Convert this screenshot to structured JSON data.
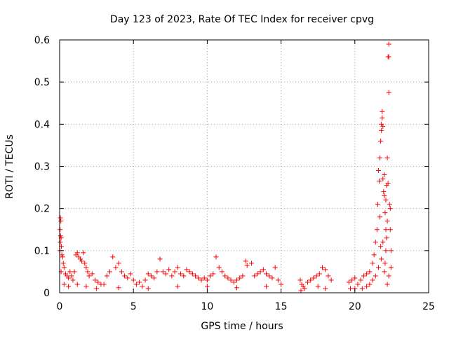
{
  "chart_data": {
    "type": "scatter",
    "title": "Day 123 of 2023, Rate Of TEC Index for receiver cpvg",
    "xlabel": "GPS time / hours",
    "ylabel": "ROTI / TECUs",
    "xlim": [
      0,
      25
    ],
    "ylim": [
      0,
      0.6
    ],
    "x_ticks": [
      0,
      5,
      10,
      15,
      20,
      25
    ],
    "y_ticks": [
      0,
      0.1,
      0.2,
      0.3,
      0.4,
      0.5,
      0.6
    ],
    "x_tick_labels": [
      "0",
      "5",
      "10",
      "15",
      "20",
      "25"
    ],
    "y_tick_labels": [
      "0",
      "0.1",
      "0.2",
      "0.3",
      "0.4",
      "0.5",
      "0.6"
    ],
    "grid": true,
    "legend": "none",
    "marker": "+",
    "marker_color": "#ff0000",
    "series": [
      {
        "values": [
          [
            0.05,
            0.178
          ],
          [
            0.08,
            0.17
          ],
          [
            0.03,
            0.15
          ],
          [
            0.06,
            0.135
          ],
          [
            0.1,
            0.13
          ],
          [
            0.04,
            0.12
          ],
          [
            0.12,
            0.11
          ],
          [
            0.02,
            0.1
          ],
          [
            0.15,
            0.09
          ],
          [
            0.2,
            0.085
          ],
          [
            0.25,
            0.07
          ],
          [
            0.3,
            0.06
          ],
          [
            0.1,
            0.05
          ],
          [
            0.4,
            0.045
          ],
          [
            0.5,
            0.04
          ],
          [
            0.6,
            0.035
          ],
          [
            0.7,
            0.05
          ],
          [
            0.8,
            0.04
          ],
          [
            0.9,
            0.03
          ],
          [
            1.0,
            0.05
          ],
          [
            1.1,
            0.09
          ],
          [
            1.2,
            0.095
          ],
          [
            1.3,
            0.085
          ],
          [
            1.4,
            0.08
          ],
          [
            1.5,
            0.075
          ],
          [
            1.6,
            0.095
          ],
          [
            1.7,
            0.07
          ],
          [
            1.8,
            0.06
          ],
          [
            1.9,
            0.05
          ],
          [
            2.0,
            0.04
          ],
          [
            2.2,
            0.045
          ],
          [
            2.4,
            0.03
          ],
          [
            2.6,
            0.025
          ],
          [
            2.8,
            0.02
          ],
          [
            3.0,
            0.02
          ],
          [
            0.3,
            0.02
          ],
          [
            0.6,
            0.015
          ],
          [
            1.2,
            0.02
          ],
          [
            1.8,
            0.015
          ],
          [
            2.5,
            0.01
          ],
          [
            3.2,
            0.04
          ],
          [
            3.4,
            0.05
          ],
          [
            3.6,
            0.085
          ],
          [
            3.8,
            0.06
          ],
          [
            4.0,
            0.07
          ],
          [
            4.2,
            0.05
          ],
          [
            4.4,
            0.04
          ],
          [
            4.6,
            0.035
          ],
          [
            4.8,
            0.045
          ],
          [
            5.0,
            0.03
          ],
          [
            5.2,
            0.02
          ],
          [
            5.4,
            0.025
          ],
          [
            5.6,
            0.015
          ],
          [
            5.8,
            0.03
          ],
          [
            6.0,
            0.045
          ],
          [
            6.2,
            0.04
          ],
          [
            6.4,
            0.035
          ],
          [
            6.6,
            0.05
          ],
          [
            6.8,
            0.08
          ],
          [
            7.0,
            0.05
          ],
          [
            7.2,
            0.045
          ],
          [
            7.4,
            0.055
          ],
          [
            7.6,
            0.04
          ],
          [
            7.8,
            0.05
          ],
          [
            8.0,
            0.06
          ],
          [
            8.2,
            0.045
          ],
          [
            8.4,
            0.04
          ],
          [
            8.6,
            0.055
          ],
          [
            8.8,
            0.05
          ],
          [
            9.0,
            0.045
          ],
          [
            9.2,
            0.04
          ],
          [
            9.4,
            0.035
          ],
          [
            9.6,
            0.03
          ],
          [
            9.8,
            0.035
          ],
          [
            10.0,
            0.03
          ],
          [
            10.2,
            0.04
          ],
          [
            10.4,
            0.045
          ],
          [
            10.6,
            0.085
          ],
          [
            10.8,
            0.06
          ],
          [
            11.0,
            0.05
          ],
          [
            11.2,
            0.04
          ],
          [
            11.4,
            0.035
          ],
          [
            11.6,
            0.03
          ],
          [
            11.8,
            0.025
          ],
          [
            12.0,
            0.03
          ],
          [
            12.2,
            0.035
          ],
          [
            12.4,
            0.04
          ],
          [
            12.6,
            0.075
          ],
          [
            12.7,
            0.065
          ],
          [
            13.0,
            0.07
          ],
          [
            13.2,
            0.04
          ],
          [
            13.4,
            0.045
          ],
          [
            13.6,
            0.05
          ],
          [
            13.8,
            0.055
          ],
          [
            14.0,
            0.045
          ],
          [
            14.2,
            0.04
          ],
          [
            14.4,
            0.035
          ],
          [
            14.6,
            0.06
          ],
          [
            14.8,
            0.03
          ],
          [
            15.0,
            0.02
          ],
          [
            14.0,
            0.015
          ],
          [
            12.0,
            0.012
          ],
          [
            10.0,
            0.015
          ],
          [
            8.0,
            0.015
          ],
          [
            6.0,
            0.01
          ],
          [
            4.0,
            0.012
          ],
          [
            16.3,
            0.03
          ],
          [
            16.4,
            0.02
          ],
          [
            16.5,
            0.015
          ],
          [
            16.6,
            0.01
          ],
          [
            16.35,
            0.005
          ],
          [
            16.8,
            0.025
          ],
          [
            17.0,
            0.03
          ],
          [
            17.2,
            0.035
          ],
          [
            17.4,
            0.04
          ],
          [
            17.6,
            0.045
          ],
          [
            17.8,
            0.06
          ],
          [
            18.0,
            0.055
          ],
          [
            18.2,
            0.04
          ],
          [
            18.4,
            0.03
          ],
          [
            17.5,
            0.015
          ],
          [
            18.0,
            0.01
          ],
          [
            19.6,
            0.025
          ],
          [
            19.8,
            0.03
          ],
          [
            20.0,
            0.035
          ],
          [
            20.2,
            0.02
          ],
          [
            20.4,
            0.03
          ],
          [
            20.6,
            0.04
          ],
          [
            20.8,
            0.045
          ],
          [
            21.0,
            0.05
          ],
          [
            21.2,
            0.07
          ],
          [
            21.3,
            0.09
          ],
          [
            21.4,
            0.12
          ],
          [
            21.5,
            0.15
          ],
          [
            21.55,
            0.21
          ],
          [
            21.6,
            0.29
          ],
          [
            21.65,
            0.265
          ],
          [
            21.7,
            0.32
          ],
          [
            21.75,
            0.36
          ],
          [
            21.8,
            0.385
          ],
          [
            21.8,
            0.4
          ],
          [
            21.85,
            0.415
          ],
          [
            21.85,
            0.43
          ],
          [
            21.9,
            0.395
          ],
          [
            21.9,
            0.27
          ],
          [
            22.0,
            0.28
          ],
          [
            22.0,
            0.23
          ],
          [
            22.05,
            0.19
          ],
          [
            22.1,
            0.15
          ],
          [
            22.1,
            0.1
          ],
          [
            22.15,
            0.13
          ],
          [
            22.2,
            0.17
          ],
          [
            22.2,
            0.32
          ],
          [
            22.25,
            0.26
          ],
          [
            22.25,
            0.56
          ],
          [
            22.3,
            0.59
          ],
          [
            22.3,
            0.56
          ],
          [
            22.3,
            0.475
          ],
          [
            22.35,
            0.21
          ],
          [
            22.4,
            0.2
          ],
          [
            22.4,
            0.15
          ],
          [
            22.45,
            0.1
          ],
          [
            22.45,
            0.06
          ],
          [
            22.3,
            0.04
          ],
          [
            22.2,
            0.02
          ],
          [
            22.0,
            0.05
          ],
          [
            21.8,
            0.08
          ],
          [
            21.6,
            0.06
          ],
          [
            21.4,
            0.04
          ],
          [
            21.2,
            0.03
          ],
          [
            21.0,
            0.02
          ],
          [
            20.8,
            0.015
          ],
          [
            20.5,
            0.01
          ],
          [
            20.0,
            0.01
          ],
          [
            19.7,
            0.01
          ],
          [
            21.9,
            0.12
          ],
          [
            22.1,
            0.22
          ],
          [
            21.7,
            0.18
          ],
          [
            21.95,
            0.24
          ],
          [
            22.15,
            0.255
          ],
          [
            21.75,
            0.11
          ],
          [
            22.05,
            0.07
          ]
        ]
      }
    ]
  }
}
